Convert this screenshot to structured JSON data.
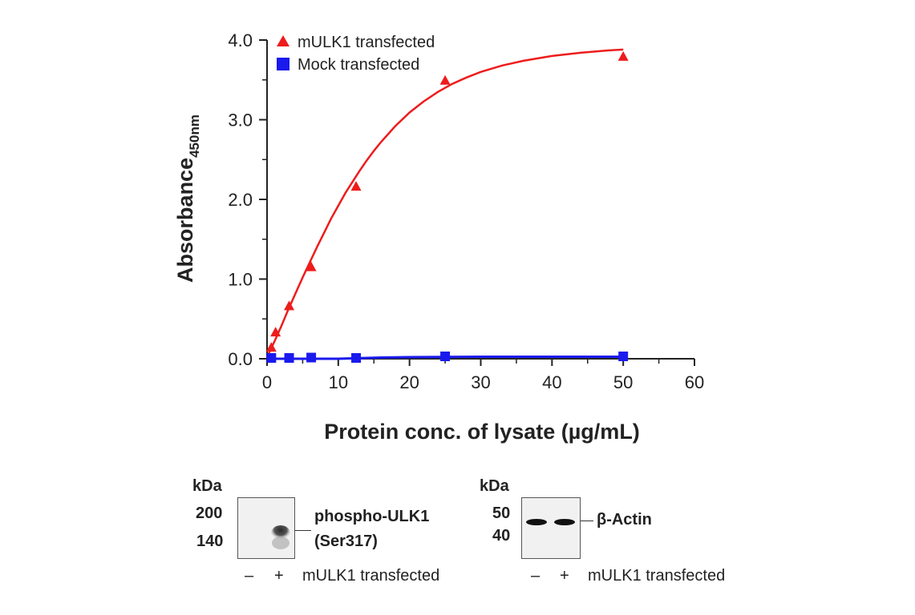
{
  "chart_data": {
    "type": "scatter",
    "title": "",
    "xlabel": "Protein conc. of lysate (µg/mL)",
    "ylabel_main": "Absorbance",
    "ylabel_sub": "450nm",
    "xlim": [
      0,
      60
    ],
    "ylim": [
      0,
      4.0
    ],
    "xticks": [
      0,
      10,
      20,
      30,
      40,
      50,
      60
    ],
    "yticks": [
      0.0,
      1.0,
      2.0,
      3.0,
      4.0
    ],
    "ytick_labels": [
      "0.0",
      "1.0",
      "2.0",
      "3.0",
      "4.0"
    ],
    "grid": false,
    "legend_position": "top-left",
    "series": [
      {
        "name": "mULK1 transfected",
        "color": "#ee1c1c",
        "marker": "triangle",
        "x": [
          0.6,
          1.2,
          3.1,
          6.2,
          12.5,
          25,
          50
        ],
        "y": [
          0.14,
          0.33,
          0.66,
          1.15,
          2.16,
          3.49,
          3.79
        ],
        "fit": {
          "x": [
            0,
            1,
            2,
            3,
            4,
            5,
            6,
            7,
            8,
            9,
            10,
            11,
            12,
            13,
            14,
            15,
            16,
            18,
            20,
            22,
            24,
            26,
            28,
            30,
            33,
            36,
            40,
            44,
            48,
            50
          ],
          "y": [
            0.02,
            0.21,
            0.41,
            0.62,
            0.82,
            1.02,
            1.21,
            1.4,
            1.58,
            1.76,
            1.92,
            2.08,
            2.22,
            2.36,
            2.49,
            2.61,
            2.72,
            2.92,
            3.09,
            3.23,
            3.35,
            3.45,
            3.53,
            3.6,
            3.68,
            3.74,
            3.8,
            3.84,
            3.87,
            3.88
          ]
        }
      },
      {
        "name": "Mock transfected",
        "color": "#1a1aee",
        "marker": "square",
        "x": [
          0.6,
          3.1,
          6.2,
          12.5,
          25,
          50
        ],
        "y": [
          0.01,
          0.01,
          0.015,
          0.01,
          0.03,
          0.03
        ],
        "fit": {
          "x": [
            0,
            10,
            16,
            20,
            30,
            40,
            50
          ],
          "y": [
            0.0,
            0.0,
            0.015,
            0.02,
            0.025,
            0.025,
            0.025
          ]
        }
      }
    ]
  },
  "blots": [
    {
      "kda_label": "kDa",
      "markers": [
        "200",
        "140"
      ],
      "lanes": [
        "–",
        "+"
      ],
      "condition": "mULK1 transfected",
      "target_line1": "phospho-ULK1",
      "target_line2": "(Ser317)"
    },
    {
      "kda_label": "kDa",
      "markers": [
        "50",
        "40"
      ],
      "lanes": [
        "–",
        "+"
      ],
      "condition": "mULK1 transfected",
      "target_line1": "β-Actin"
    }
  ]
}
